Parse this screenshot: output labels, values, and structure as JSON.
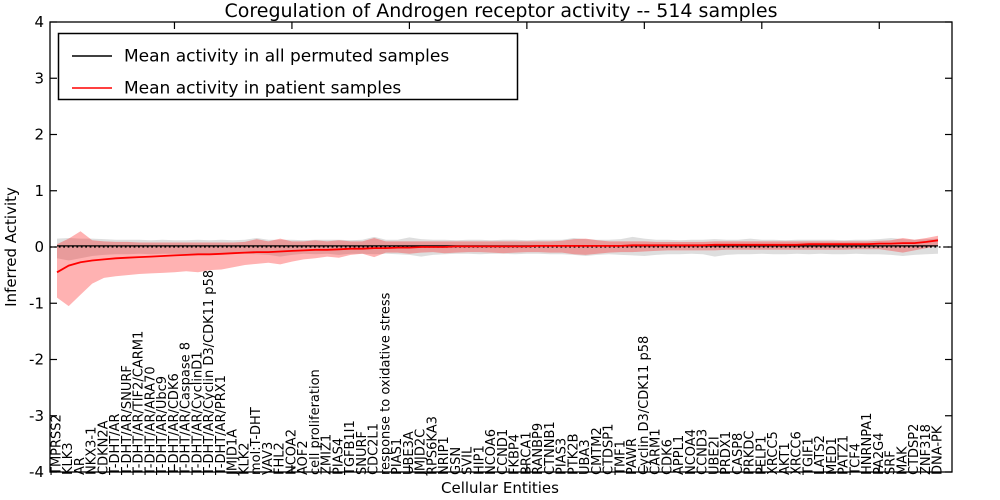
{
  "chart_data": {
    "type": "line",
    "title": "Coregulation of Androgen receptor activity -- 514 samples",
    "xlabel": "Cellular Entities",
    "ylabel": "Inferred Activity",
    "ylim": [
      -4,
      4
    ],
    "yticks": [
      4,
      3,
      2,
      1,
      0,
      -1,
      -2,
      -3,
      -4
    ],
    "grid": false,
    "legend_position": "upper left",
    "zero_line": {
      "style": "dotted",
      "color": "#000000",
      "y": 0
    },
    "categories": [
      "TMPRSS2",
      "KLK3",
      "AR",
      "NKX3-1",
      "CDKN2A",
      "T-DHT/AR",
      "T-DHT/AR/SNURF",
      "T-DHT/AR/TIF2/CARM1",
      "T-DHT/AR/ARA70",
      "T-DHT/AR/Ubc9",
      "T-DHT/AR/CDK6",
      "T-DHT/AR/Caspase 8",
      "T-DHT/AR/CyclinD1",
      "T-DHT/AR/Cyclin D3/CDK11 p58",
      "T-DHT/AR/PRX1",
      "JMJD1A",
      "KLK2",
      "mol:T-DHT",
      "VAV3",
      "FHL2",
      "NCOA2",
      "AOF2",
      "cell proliferation",
      "ZMIZ1",
      "PIAS4",
      "TGFB1I1",
      "SNURF",
      "CDC2L1",
      "response to oxidative stress",
      "PIAS1",
      "UBE3A",
      "JMJD2C",
      "RPS6KA3",
      "NRIP1",
      "GSN",
      "SVIL",
      "HIP1",
      "NCOA6",
      "CCND1",
      "FKBP4",
      "BRCA1",
      "RANBP9",
      "CTNNB1",
      "PIAS3",
      "PTK2B",
      "UBA3",
      "CMTM2",
      "CTDSP1",
      "TMF1",
      "PAWR",
      "Cyclin D3/CDK11 p58",
      "CARM1",
      "CDK6",
      "APPL1",
      "NCOA4",
      "CCND3",
      "UBE2I",
      "PRDX1",
      "CASP8",
      "PRKDC",
      "PELP1",
      "XRCC5",
      "AKT1",
      "XRCC6",
      "TGIF1",
      "LATS2",
      "MED1",
      "PATZ1",
      "TCF4",
      "HNRNPA1",
      "PA2G4",
      "SRF",
      "MAK",
      "CTDSP2",
      "ZNF318",
      "DNA-PK"
    ],
    "series": [
      {
        "name": "Mean activity in all permuted samples",
        "color": "#000000",
        "values": [
          0.02,
          0.02,
          0.02,
          0.02,
          0.02,
          0.02,
          0.02,
          0.02,
          0.02,
          0.02,
          0.02,
          0.02,
          0.02,
          0.02,
          0.02,
          0.02,
          0.02,
          0.02,
          0.02,
          0.02,
          0.02,
          0.02,
          0.02,
          0.02,
          0.02,
          0.02,
          0.02,
          0.02,
          0.02,
          0.02,
          0.02,
          0.02,
          0.02,
          0.02,
          0.02,
          0.02,
          0.02,
          0.02,
          0.02,
          0.02,
          0.02,
          0.02,
          0.02,
          0.02,
          0.02,
          0.02,
          0.02,
          0.02,
          0.02,
          0.02,
          0.02,
          0.02,
          0.02,
          0.02,
          0.02,
          0.02,
          0.02,
          0.02,
          0.02,
          0.02,
          0.02,
          0.02,
          0.02,
          0.02,
          0.02,
          0.02,
          0.02,
          0.02,
          0.02,
          0.02,
          0.02,
          0.02,
          0.02,
          0.02,
          0.02,
          0.02
        ]
      },
      {
        "name": "Mean activity in patient samples",
        "color": "#ff0000",
        "values": [
          -0.45,
          -0.33,
          -0.27,
          -0.24,
          -0.22,
          -0.2,
          -0.19,
          -0.18,
          -0.17,
          -0.16,
          -0.15,
          -0.14,
          -0.13,
          -0.13,
          -0.12,
          -0.11,
          -0.1,
          -0.09,
          -0.09,
          -0.08,
          -0.07,
          -0.06,
          -0.05,
          -0.05,
          -0.04,
          -0.03,
          -0.03,
          -0.02,
          -0.02,
          -0.01,
          -0.01,
          0.0,
          0.0,
          0.0,
          0.01,
          0.01,
          0.01,
          0.01,
          0.01,
          0.01,
          0.01,
          0.02,
          0.02,
          0.02,
          0.02,
          0.02,
          0.02,
          0.02,
          0.02,
          0.03,
          0.03,
          0.03,
          0.03,
          0.03,
          0.03,
          0.03,
          0.04,
          0.04,
          0.04,
          0.04,
          0.04,
          0.04,
          0.04,
          0.04,
          0.05,
          0.05,
          0.05,
          0.05,
          0.05,
          0.05,
          0.06,
          0.06,
          0.07,
          0.07,
          0.09,
          0.12
        ]
      }
    ],
    "bands": [
      {
        "name": "permuted-samples-band",
        "color": "rgba(0,0,0,0.13)",
        "lower": [
          -0.2,
          -0.24,
          -0.2,
          -0.16,
          -0.14,
          -0.13,
          -0.13,
          -0.12,
          -0.13,
          -0.12,
          -0.12,
          -0.13,
          -0.12,
          -0.12,
          -0.13,
          -0.12,
          -0.12,
          -0.13,
          -0.14,
          -0.17,
          -0.14,
          -0.12,
          -0.13,
          -0.12,
          -0.14,
          -0.12,
          -0.12,
          -0.13,
          -0.12,
          -0.13,
          -0.14,
          -0.17,
          -0.14,
          -0.13,
          -0.12,
          -0.12,
          -0.13,
          -0.12,
          -0.12,
          -0.13,
          -0.12,
          -0.12,
          -0.13,
          -0.13,
          -0.14,
          -0.16,
          -0.14,
          -0.13,
          -0.14,
          -0.15,
          -0.16,
          -0.14,
          -0.13,
          -0.13,
          -0.12,
          -0.13,
          -0.17,
          -0.14,
          -0.13,
          -0.13,
          -0.12,
          -0.13,
          -0.13,
          -0.12,
          -0.13,
          -0.12,
          -0.13,
          -0.13,
          -0.12,
          -0.13,
          -0.13,
          -0.14,
          -0.16,
          -0.14,
          -0.13,
          -0.12
        ],
        "upper": [
          0.15,
          0.16,
          0.15,
          0.15,
          0.14,
          0.13,
          0.13,
          0.13,
          0.12,
          0.13,
          0.12,
          0.12,
          0.13,
          0.12,
          0.13,
          0.12,
          0.13,
          0.16,
          0.13,
          0.13,
          0.13,
          0.12,
          0.13,
          0.13,
          0.13,
          0.12,
          0.13,
          0.18,
          0.13,
          0.13,
          0.17,
          0.14,
          0.13,
          0.13,
          0.12,
          0.13,
          0.13,
          0.12,
          0.13,
          0.13,
          0.12,
          0.13,
          0.13,
          0.13,
          0.16,
          0.14,
          0.13,
          0.13,
          0.14,
          0.18,
          0.15,
          0.13,
          0.13,
          0.12,
          0.13,
          0.13,
          0.14,
          0.13,
          0.13,
          0.15,
          0.13,
          0.13,
          0.12,
          0.13,
          0.13,
          0.13,
          0.13,
          0.12,
          0.13,
          0.13,
          0.14,
          0.16,
          0.14,
          0.13,
          0.14,
          0.15
        ]
      },
      {
        "name": "patient-samples-band",
        "color": "rgba(255,0,0,0.30)",
        "lower": [
          -0.9,
          -1.05,
          -0.85,
          -0.65,
          -0.55,
          -0.52,
          -0.5,
          -0.48,
          -0.47,
          -0.46,
          -0.45,
          -0.43,
          -0.45,
          -0.41,
          -0.4,
          -0.36,
          -0.32,
          -0.3,
          -0.28,
          -0.31,
          -0.26,
          -0.22,
          -0.2,
          -0.17,
          -0.19,
          -0.14,
          -0.12,
          -0.18,
          -0.1,
          -0.1,
          -0.12,
          -0.1,
          -0.09,
          -0.11,
          -0.1,
          -0.09,
          -0.09,
          -0.1,
          -0.11,
          -0.1,
          -0.09,
          -0.09,
          -0.1,
          -0.1,
          -0.13,
          -0.14,
          -0.12,
          -0.1,
          -0.09,
          -0.09,
          -0.08,
          -0.07,
          -0.06,
          -0.06,
          -0.06,
          -0.06,
          -0.06,
          -0.05,
          -0.05,
          -0.05,
          -0.05,
          -0.05,
          -0.05,
          -0.05,
          -0.05,
          -0.05,
          -0.05,
          -0.05,
          -0.04,
          -0.04,
          -0.04,
          -0.07,
          -0.1,
          -0.06,
          -0.02,
          0.02
        ],
        "upper": [
          0.05,
          0.15,
          0.28,
          0.12,
          0.1,
          0.09,
          0.09,
          0.08,
          0.08,
          0.08,
          0.08,
          0.08,
          0.08,
          0.08,
          0.08,
          0.08,
          0.09,
          0.14,
          0.1,
          0.15,
          0.1,
          0.1,
          0.12,
          0.1,
          0.12,
          0.1,
          0.1,
          0.16,
          0.1,
          0.1,
          0.1,
          0.1,
          0.1,
          0.1,
          0.1,
          0.1,
          0.1,
          0.1,
          0.1,
          0.1,
          0.1,
          0.1,
          0.1,
          0.11,
          0.14,
          0.15,
          0.12,
          0.1,
          0.1,
          0.1,
          0.1,
          0.09,
          0.09,
          0.09,
          0.09,
          0.09,
          0.1,
          0.1,
          0.1,
          0.1,
          0.1,
          0.1,
          0.1,
          0.1,
          0.1,
          0.1,
          0.1,
          0.1,
          0.1,
          0.1,
          0.11,
          0.12,
          0.16,
          0.13,
          0.16,
          0.2
        ]
      }
    ]
  }
}
